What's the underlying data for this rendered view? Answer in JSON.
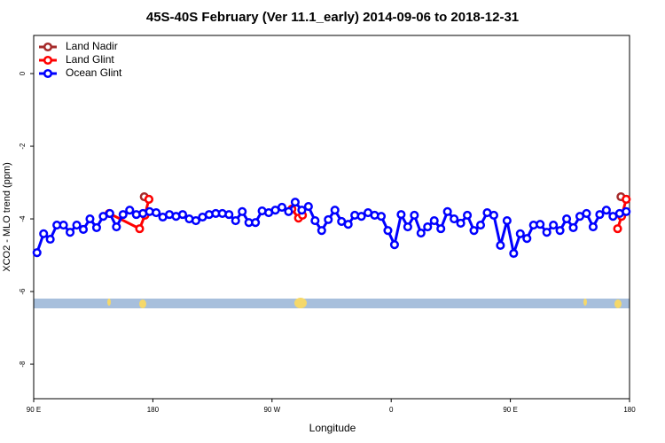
{
  "chart_data": {
    "type": "line",
    "title": "45S-40S February (Ver 11.1_early)   2014-09-06 to 2018-12-31",
    "xlabel": "Longitude",
    "ylabel": "XCO2 - MLO trend (ppm)",
    "xlim": [
      90,
      540
    ],
    "ylim": [
      -8.95,
      1.05
    ],
    "xticks": [
      {
        "value": 90,
        "label": "90 E"
      },
      180,
      {
        "value": 270,
        "label": "90 W"
      },
      {
        "value": 360,
        "label": "0"
      },
      {
        "value": 450,
        "label": "90 E"
      },
      {
        "value": 540,
        "label": "180"
      }
    ],
    "yticks": [
      0,
      -2,
      -4,
      -6,
      -8
    ],
    "legend": "top-left",
    "series": [
      {
        "name": "Land Nadir",
        "color": "#a52a2a",
        "x": [
          173.5,
          177,
          355,
          533.5,
          537.5
        ],
        "values": [
          -3.39,
          -3.46,
          null,
          -3.39,
          -3.46
        ]
      },
      {
        "name": "Land Glint",
        "color": "#ff0000",
        "x": [
          147,
          170,
          174,
          177,
          230,
          285,
          290,
          293,
          360,
          531,
          534,
          537.5
        ],
        "values": [
          -3.85,
          -4.27,
          -3.9,
          -3.46,
          null,
          -3.73,
          -3.98,
          -3.9,
          null,
          -4.27,
          -3.93,
          -3.46
        ]
      },
      {
        "name": "Ocean Glint",
        "color": "#0000ff",
        "x": [
          92.5,
          97.5,
          102.5,
          107.5,
          112.5,
          117.5,
          122.5,
          127.5,
          132.5,
          137.5,
          142.5,
          147.5,
          152.5,
          157.5,
          162.5,
          167.5,
          172.5,
          177.5,
          182.5,
          187.5,
          192.5,
          197.5,
          202.5,
          207.5,
          212.5,
          217.5,
          222.5,
          227.5,
          232.5,
          237.5,
          242.5,
          247.5,
          252.5,
          257.5,
          262.5,
          267.5,
          272.5,
          277.5,
          282.5,
          287.5,
          292.5,
          297.5,
          302.5,
          307.5,
          312.5,
          317.5,
          322.5,
          327.5,
          332.5,
          337.5,
          342.5,
          347.5,
          352.5,
          357.5,
          362.5,
          367.5,
          372.5,
          377.5,
          382.5,
          387.5,
          392.5,
          397.5,
          402.5,
          407.5,
          412.5,
          417.5,
          422.5,
          427.5,
          432.5,
          437.5,
          442.5,
          447.5,
          452.5,
          457.5,
          462.5,
          467.5,
          472.5,
          477.5,
          482.5,
          487.5,
          492.5,
          497.5,
          502.5,
          507.5,
          512.5,
          517.5,
          522.5,
          527.5,
          532.5,
          537.5
        ],
        "values": [
          -4.93,
          -4.41,
          -4.56,
          -4.17,
          -4.17,
          -4.37,
          -4.17,
          -4.29,
          -4.0,
          -4.24,
          -3.93,
          -3.85,
          -4.22,
          -3.88,
          -3.76,
          -3.88,
          -3.85,
          -3.8,
          -3.83,
          -3.95,
          -3.88,
          -3.93,
          -3.88,
          -4.0,
          -4.05,
          -3.95,
          -3.88,
          -3.85,
          -3.85,
          -3.88,
          -4.05,
          -3.8,
          -4.1,
          -4.1,
          -3.78,
          -3.83,
          -3.76,
          -3.68,
          -3.8,
          -3.54,
          -3.76,
          -3.66,
          -4.05,
          -4.32,
          -4.02,
          -3.76,
          -4.07,
          -4.15,
          -3.9,
          -3.93,
          -3.83,
          -3.9,
          -3.93,
          -4.32,
          -4.71,
          -3.88,
          -4.22,
          -3.9,
          -4.39,
          -4.22,
          -4.05,
          -4.27,
          -3.8,
          -4.0,
          -4.12,
          -3.9,
          -4.32,
          -4.17,
          -3.83,
          -3.9,
          -4.73,
          -4.05,
          -4.95,
          -4.41,
          -4.54,
          -4.17,
          -4.15,
          -4.37,
          -4.17,
          -4.32,
          -4.0,
          -4.24,
          -3.93,
          -3.85,
          -4.22,
          -3.88,
          -3.76,
          -3.93,
          -3.85,
          -3.8
        ]
      }
    ]
  }
}
